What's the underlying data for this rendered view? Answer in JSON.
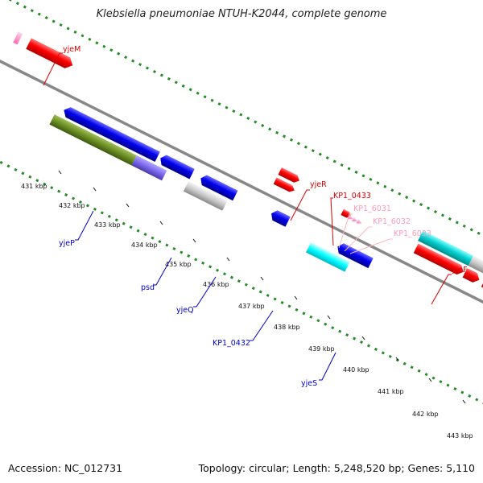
{
  "title": "Klebsiella pneumoniae NTUH-K2044, complete genome",
  "accession_text": "Accession: NC_012731",
  "summary_text": "Topology: circular; Length: 5,248,520 bp; Genes: 5,110",
  "colors": {
    "forward_red": "#ff0000",
    "reverse_blue": "#0000ee",
    "olive": "#6b8e23",
    "cyan": "#00cccc",
    "light_cyan": "#00ffff",
    "slate": "#7b68ee",
    "gray": "#c0c0c0",
    "pink": "#ff69b4",
    "light_pink": "#ffb6c1",
    "gc_dash": "#228b22"
  },
  "scale_labels": [
    "431 kbp",
    "432 kbp",
    "433 kbp",
    "434 kbp",
    "435 kbp",
    "436 kbp",
    "437 kbp",
    "438 kbp",
    "439 kbp",
    "440 kbp",
    "441 kbp",
    "442 kbp",
    "443 kbp"
  ],
  "gene_labels": {
    "yjeM": "yjeM",
    "yjeR": "yjeR",
    "KP1_0433": "KP1_0433",
    "KP1_6031": "KP1_6031",
    "KP1_6032": "KP1_6032",
    "KP1_6033": "KP1_6033",
    "yjeF": "yjeF",
    "yjeP": "yjeP",
    "psd": "psd",
    "yjeQ": "yjeQ",
    "KP1_0432": "KP1_0432",
    "yjeS": "yjeS"
  }
}
